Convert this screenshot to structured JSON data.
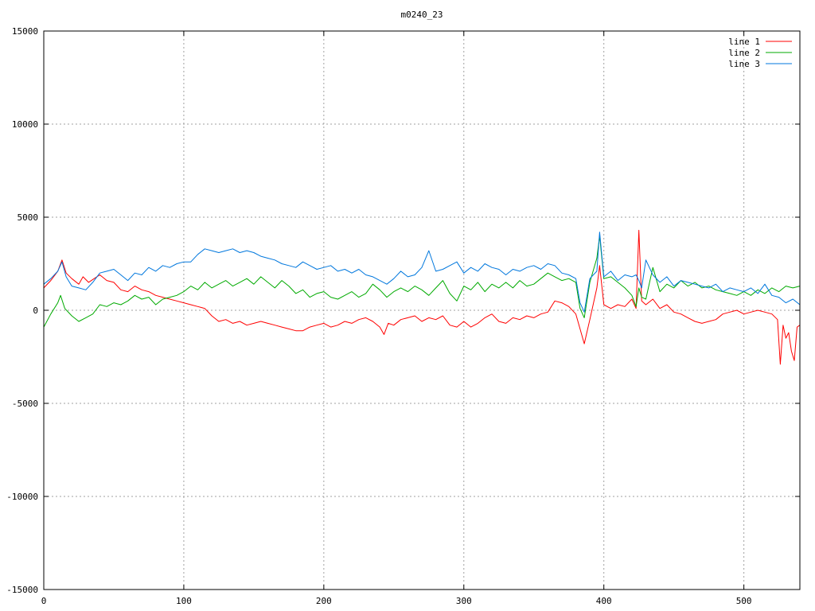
{
  "chart_data": {
    "type": "line",
    "title": "m0240_23",
    "xlabel": "",
    "ylabel": "",
    "xlim": [
      0,
      540
    ],
    "ylim": [
      -15000,
      15000
    ],
    "xticks": [
      0,
      100,
      200,
      300,
      400,
      500
    ],
    "yticks": [
      -15000,
      -10000,
      -5000,
      0,
      5000,
      10000,
      15000
    ],
    "grid": true,
    "legend_position": "top-right",
    "series": [
      {
        "name": "line 1",
        "color": "#ff0000",
        "x": [
          0,
          5,
          10,
          13,
          16,
          20,
          25,
          28,
          32,
          36,
          40,
          45,
          50,
          55,
          60,
          65,
          70,
          75,
          80,
          85,
          90,
          95,
          100,
          105,
          110,
          115,
          120,
          125,
          130,
          135,
          140,
          145,
          150,
          155,
          160,
          165,
          170,
          175,
          180,
          185,
          190,
          195,
          200,
          205,
          210,
          215,
          220,
          225,
          230,
          235,
          240,
          243,
          246,
          250,
          255,
          260,
          265,
          270,
          275,
          280,
          285,
          290,
          295,
          300,
          305,
          310,
          315,
          320,
          325,
          330,
          335,
          340,
          345,
          350,
          355,
          360,
          365,
          370,
          375,
          380,
          383,
          386,
          390,
          395,
          397,
          400,
          405,
          410,
          415,
          420,
          423,
          425,
          427,
          430,
          435,
          440,
          445,
          450,
          455,
          460,
          465,
          470,
          475,
          480,
          485,
          490,
          495,
          500,
          505,
          510,
          515,
          520,
          524,
          526,
          528,
          530,
          532,
          534,
          536,
          538,
          540
        ],
        "y": [
          1200,
          1600,
          2100,
          2700,
          2000,
          1700,
          1400,
          1800,
          1500,
          1700,
          1900,
          1600,
          1500,
          1100,
          1000,
          1300,
          1100,
          1000,
          800,
          700,
          600,
          500,
          400,
          300,
          200,
          100,
          -300,
          -600,
          -500,
          -700,
          -600,
          -800,
          -700,
          -600,
          -700,
          -800,
          -900,
          -1000,
          -1100,
          -1100,
          -900,
          -800,
          -700,
          -900,
          -800,
          -600,
          -700,
          -500,
          -400,
          -600,
          -900,
          -1300,
          -700,
          -800,
          -500,
          -400,
          -300,
          -600,
          -400,
          -500,
          -300,
          -800,
          -900,
          -600,
          -900,
          -700,
          -400,
          -200,
          -600,
          -700,
          -400,
          -500,
          -300,
          -400,
          -200,
          -100,
          500,
          400,
          200,
          -200,
          -1000,
          -1800,
          -500,
          1200,
          2400,
          300,
          100,
          300,
          200,
          600,
          100,
          4300,
          500,
          300,
          600,
          100,
          300,
          -100,
          -200,
          -400,
          -600,
          -700,
          -600,
          -500,
          -200,
          -100,
          0,
          -200,
          -100,
          0,
          -100,
          -200,
          -500,
          -2900,
          -800,
          -1500,
          -1200,
          -2200,
          -2700,
          -900,
          -800
        ]
      },
      {
        "name": "line 2",
        "color": "#00aa00",
        "x": [
          0,
          5,
          10,
          12,
          15,
          20,
          25,
          30,
          35,
          40,
          45,
          50,
          55,
          60,
          65,
          70,
          75,
          80,
          85,
          90,
          95,
          100,
          105,
          110,
          115,
          120,
          125,
          130,
          135,
          140,
          145,
          150,
          155,
          160,
          165,
          170,
          175,
          180,
          185,
          190,
          195,
          200,
          205,
          210,
          215,
          220,
          225,
          230,
          235,
          240,
          245,
          250,
          255,
          260,
          265,
          270,
          275,
          280,
          285,
          290,
          295,
          300,
          305,
          310,
          315,
          320,
          325,
          330,
          335,
          340,
          345,
          350,
          355,
          360,
          365,
          370,
          375,
          380,
          383,
          386,
          390,
          395,
          397,
          400,
          405,
          410,
          415,
          420,
          423,
          425,
          427,
          430,
          435,
          440,
          445,
          450,
          455,
          460,
          465,
          470,
          475,
          480,
          485,
          490,
          495,
          500,
          505,
          510,
          515,
          520,
          525,
          530,
          535,
          540
        ],
        "y": [
          -900,
          -200,
          400,
          800,
          100,
          -300,
          -600,
          -400,
          -200,
          300,
          200,
          400,
          300,
          500,
          800,
          600,
          700,
          300,
          600,
          700,
          800,
          1000,
          1300,
          1100,
          1500,
          1200,
          1400,
          1600,
          1300,
          1500,
          1700,
          1400,
          1800,
          1500,
          1200,
          1600,
          1300,
          900,
          1100,
          700,
          900,
          1000,
          700,
          600,
          800,
          1000,
          700,
          900,
          1400,
          1100,
          700,
          1000,
          1200,
          1000,
          1300,
          1100,
          800,
          1200,
          1600,
          900,
          500,
          1300,
          1100,
          1500,
          1000,
          1400,
          1200,
          1500,
          1200,
          1600,
          1300,
          1400,
          1700,
          2000,
          1800,
          1600,
          1700,
          1500,
          100,
          -400,
          1500,
          2800,
          4000,
          1700,
          1800,
          1500,
          1200,
          800,
          200,
          1200,
          700,
          600,
          2300,
          1000,
          1400,
          1200,
          1600,
          1300,
          1500,
          1200,
          1300,
          1100,
          1000,
          900,
          800,
          1000,
          800,
          1100,
          900,
          1200,
          1000,
          1300,
          1200,
          1300
        ]
      },
      {
        "name": "line 3",
        "color": "#0077dd",
        "x": [
          0,
          5,
          10,
          13,
          16,
          20,
          25,
          30,
          35,
          40,
          45,
          50,
          55,
          60,
          65,
          70,
          75,
          80,
          85,
          90,
          95,
          100,
          105,
          110,
          115,
          120,
          125,
          130,
          135,
          140,
          145,
          150,
          155,
          160,
          165,
          170,
          175,
          180,
          185,
          190,
          195,
          200,
          205,
          210,
          215,
          220,
          225,
          230,
          235,
          240,
          245,
          250,
          255,
          260,
          265,
          270,
          275,
          280,
          285,
          290,
          295,
          300,
          305,
          310,
          315,
          320,
          325,
          330,
          335,
          340,
          345,
          350,
          355,
          360,
          365,
          370,
          375,
          380,
          383,
          386,
          390,
          395,
          397,
          400,
          405,
          410,
          415,
          420,
          423,
          425,
          427,
          430,
          435,
          440,
          445,
          450,
          455,
          460,
          465,
          470,
          475,
          480,
          485,
          490,
          495,
          500,
          505,
          510,
          515,
          520,
          525,
          530,
          535,
          540
        ],
        "y": [
          1400,
          1700,
          2100,
          2600,
          1800,
          1300,
          1200,
          1100,
          1500,
          2000,
          2100,
          2200,
          1900,
          1600,
          2000,
          1900,
          2300,
          2100,
          2400,
          2300,
          2500,
          2600,
          2600,
          3000,
          3300,
          3200,
          3100,
          3200,
          3300,
          3100,
          3200,
          3100,
          2900,
          2800,
          2700,
          2500,
          2400,
          2300,
          2600,
          2400,
          2200,
          2300,
          2400,
          2100,
          2200,
          2000,
          2200,
          1900,
          1800,
          1600,
          1400,
          1700,
          2100,
          1800,
          1900,
          2300,
          3200,
          2100,
          2200,
          2400,
          2600,
          2000,
          2300,
          2100,
          2500,
          2300,
          2200,
          1900,
          2200,
          2100,
          2300,
          2400,
          2200,
          2500,
          2400,
          2000,
          1900,
          1700,
          400,
          -100,
          1700,
          2100,
          4200,
          1800,
          2100,
          1600,
          1900,
          1800,
          1900,
          1600,
          1200,
          2700,
          1900,
          1500,
          1800,
          1300,
          1600,
          1500,
          1400,
          1300,
          1200,
          1400,
          1000,
          1200,
          1100,
          1000,
          1200,
          900,
          1400,
          800,
          700,
          400,
          600,
          300
        ]
      }
    ]
  }
}
